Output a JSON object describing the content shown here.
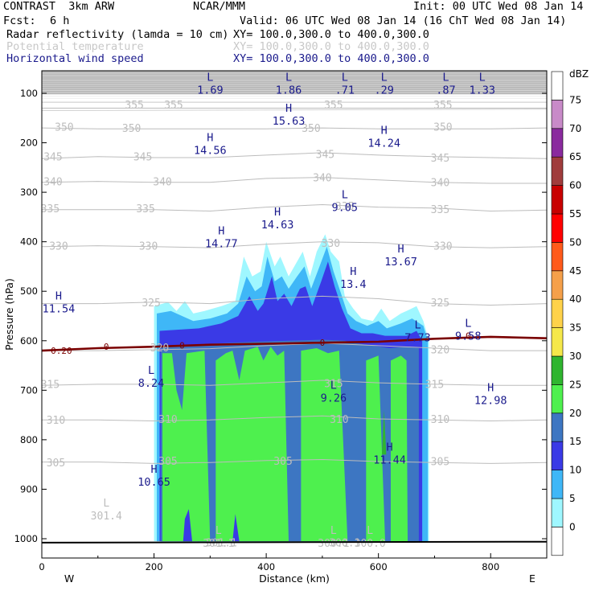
{
  "header": {
    "model": "CONTRAST  3km ARW",
    "org": "NCAR/MMM",
    "init": "Init: 00 UTC Wed 08 Jan 14",
    "fcst_label": "Fcst:",
    "fcst_value": "6 h",
    "valid": "Valid: 06 UTC Wed 08 Jan 14 (16 ChT Wed 08 Jan 14)"
  },
  "fields": [
    {
      "name": "Radar reflectivity (lamda = 10 cm)",
      "xy": "XY= 100.0,300.0 to 400.0,300.0",
      "color": "#000000"
    },
    {
      "name": "Potential temperature",
      "xy": "XY= 100.0,300.0 to 400.0,300.0",
      "color": "#c8c8c8"
    },
    {
      "name": "Horizontal wind speed",
      "xy": "XY= 100.0,300.0 to 400.0,300.0",
      "color": "#1a1a8c"
    }
  ],
  "chart_data": {
    "type": "heatmap",
    "title": "",
    "xlabel": "Distance (km)",
    "ylabel": "Pressure (hPa)",
    "xlim": [
      0,
      900
    ],
    "ylim": [
      1050,
      50
    ],
    "x_ticks": [
      0,
      200,
      400,
      600,
      800
    ],
    "y_ticks": [
      100,
      200,
      300,
      400,
      500,
      600,
      700,
      800,
      900,
      1000
    ],
    "direction_labels": {
      "left": "W",
      "right": "E"
    },
    "colorbar": {
      "unit": "dBZ",
      "levels": [
        0,
        5,
        10,
        15,
        20,
        25,
        30,
        35,
        40,
        45,
        50,
        55,
        60,
        65,
        70,
        75
      ],
      "colors": [
        "#ffffff",
        "#9ff7ff",
        "#3fb7f7",
        "#3a3ae6",
        "#3d76c2",
        "#4ef04e",
        "#2fb52f",
        "#f5e84a",
        "#ffd24a",
        "#f5a04a",
        "#ff5a1a",
        "#ff0000",
        "#c80000",
        "#a03c3c",
        "#8a2a9e",
        "#c88ac8"
      ]
    },
    "theta_contours": [
      {
        "value": 355,
        "p": [
          130,
          130,
          130,
          130,
          130,
          130,
          130,
          130,
          130,
          130
        ]
      },
      {
        "value": 350,
        "p": [
          170,
          172,
          172,
          172,
          172,
          170,
          172,
          172,
          172,
          170
        ]
      },
      {
        "value": 345,
        "p": [
          232,
          228,
          230,
          230,
          225,
          220,
          225,
          228,
          230,
          232
        ]
      },
      {
        "value": 340,
        "p": [
          280,
          278,
          280,
          280,
          272,
          270,
          275,
          280,
          282,
          282
        ]
      },
      {
        "value": 335,
        "p": [
          335,
          335,
          335,
          338,
          330,
          325,
          330,
          332,
          338,
          336
        ]
      },
      {
        "value": 330,
        "p": [
          410,
          408,
          410,
          412,
          405,
          400,
          402,
          410,
          412,
          410
        ]
      },
      {
        "value": 325,
        "p": [
          525,
          525,
          522,
          525,
          515,
          510,
          515,
          525,
          528,
          525
        ]
      },
      {
        "value": 320,
        "p": [
          620,
          620,
          618,
          616,
          610,
          605,
          610,
          615,
          620,
          620
        ]
      },
      {
        "value": 315,
        "p": [
          690,
          688,
          688,
          690,
          685,
          680,
          685,
          688,
          690,
          690
        ]
      },
      {
        "value": 310,
        "p": [
          760,
          760,
          762,
          760,
          755,
          752,
          758,
          760,
          762,
          760
        ]
      },
      {
        "value": 305,
        "p": [
          845,
          845,
          848,
          846,
          842,
          840,
          844,
          846,
          848,
          846
        ]
      }
    ],
    "theta_labels": [
      {
        "text": "355",
        "x": 165,
        "p": 125
      },
      {
        "text": "355",
        "x": 235,
        "p": 125
      },
      {
        "text": "355",
        "x": 520,
        "p": 125
      },
      {
        "text": "355",
        "x": 715,
        "p": 125
      },
      {
        "text": "350",
        "x": 40,
        "p": 170
      },
      {
        "text": "350",
        "x": 160,
        "p": 172
      },
      {
        "text": "350",
        "x": 480,
        "p": 172
      },
      {
        "text": "350",
        "x": 715,
        "p": 170
      },
      {
        "text": "345",
        "x": 20,
        "p": 230
      },
      {
        "text": "345",
        "x": 180,
        "p": 230
      },
      {
        "text": "345",
        "x": 505,
        "p": 225
      },
      {
        "text": "345",
        "x": 710,
        "p": 232
      },
      {
        "text": "340",
        "x": 20,
        "p": 280
      },
      {
        "text": "340",
        "x": 215,
        "p": 280
      },
      {
        "text": "340",
        "x": 500,
        "p": 272
      },
      {
        "text": "340",
        "x": 710,
        "p": 282
      },
      {
        "text": "335",
        "x": 15,
        "p": 335
      },
      {
        "text": "335",
        "x": 185,
        "p": 335
      },
      {
        "text": "335",
        "x": 540,
        "p": 330
      },
      {
        "text": "335",
        "x": 710,
        "p": 336
      },
      {
        "text": "330",
        "x": 30,
        "p": 410
      },
      {
        "text": "330",
        "x": 190,
        "p": 410
      },
      {
        "text": "330",
        "x": 515,
        "p": 405
      },
      {
        "text": "330",
        "x": 715,
        "p": 410
      },
      {
        "text": "325",
        "x": 195,
        "p": 525
      },
      {
        "text": "325",
        "x": 710,
        "p": 525
      },
      {
        "text": "320",
        "x": 210,
        "p": 616
      },
      {
        "text": "320",
        "x": 710,
        "p": 620
      },
      {
        "text": "315",
        "x": 15,
        "p": 690
      },
      {
        "text": "315",
        "x": 520,
        "p": 688
      },
      {
        "text": "315",
        "x": 700,
        "p": 690
      },
      {
        "text": "310",
        "x": 25,
        "p": 762
      },
      {
        "text": "310",
        "x": 225,
        "p": 760
      },
      {
        "text": "310",
        "x": 530,
        "p": 760
      },
      {
        "text": "310",
        "x": 710,
        "p": 760
      },
      {
        "text": "305",
        "x": 25,
        "p": 848
      },
      {
        "text": "305",
        "x": 225,
        "p": 845
      },
      {
        "text": "305",
        "x": 430,
        "p": 845
      },
      {
        "text": "305",
        "x": 710,
        "p": 846
      },
      {
        "text": "301.1",
        "x": 320,
        "p": 1010
      },
      {
        "text": "300.1",
        "x": 540,
        "p": 1010
      }
    ],
    "theta_extrema": [
      {
        "type": "L",
        "value": "301.4",
        "x": 115,
        "p": 945
      },
      {
        "type": "L",
        "value": "301.1",
        "x": 315,
        "p": 1000
      },
      {
        "type": "L",
        "value": "300.1",
        "x": 520,
        "p": 1000
      },
      {
        "type": "L",
        "value": "300.0",
        "x": 585,
        "p": 1000
      }
    ],
    "wind_zero_contour": {
      "label": "0",
      "p": [
        620,
        615,
        612,
        608,
        606,
        604,
        602,
        596,
        592,
        595
      ]
    },
    "wind_zero_labels": [
      {
        "text": "0.20",
        "x": 35,
        "p": 620
      },
      {
        "text": "0",
        "x": 115,
        "p": 612
      },
      {
        "text": "0",
        "x": 250,
        "p": 609
      },
      {
        "text": "0",
        "x": 500,
        "p": 604
      },
      {
        "text": "0",
        "x": 760,
        "p": 590
      }
    ],
    "wind_extrema": [
      {
        "type": "L",
        "value": "1.69",
        "x": 300,
        "p": 88
      },
      {
        "type": "L",
        "value": "1.86",
        "x": 440,
        "p": 88
      },
      {
        "type": "L",
        "value": ".71",
        "x": 540,
        "p": 88
      },
      {
        "type": "L",
        "value": ".29",
        "x": 610,
        "p": 88
      },
      {
        "type": "L",
        "value": ".87",
        "x": 720,
        "p": 88
      },
      {
        "type": "L",
        "value": "1.33",
        "x": 785,
        "p": 88
      },
      {
        "type": "H",
        "value": "15.63",
        "x": 440,
        "p": 150
      },
      {
        "type": "H",
        "value": "14.24",
        "x": 610,
        "p": 195
      },
      {
        "type": "H",
        "value": "14.56",
        "x": 300,
        "p": 210
      },
      {
        "type": "L",
        "value": "9.05",
        "x": 540,
        "p": 325
      },
      {
        "type": "H",
        "value": "14.63",
        "x": 420,
        "p": 360
      },
      {
        "type": "H",
        "value": "14.77",
        "x": 320,
        "p": 398
      },
      {
        "type": "H",
        "value": "13.67",
        "x": 640,
        "p": 435
      },
      {
        "type": "H",
        "value": "13.4",
        "x": 555,
        "p": 480
      },
      {
        "type": "H",
        "value": "11.54",
        "x": 30,
        "p": 530
      },
      {
        "type": "L",
        "value": "7.73",
        "x": 670,
        "p": 588
      },
      {
        "type": "L",
        "value": "9.58",
        "x": 760,
        "p": 585
      },
      {
        "type": "L",
        "value": "8.24",
        "x": 195,
        "p": 680
      },
      {
        "type": "L",
        "value": "9.26",
        "x": 520,
        "p": 710
      },
      {
        "type": "H",
        "value": "12.98",
        "x": 800,
        "p": 715
      },
      {
        "type": "H",
        "value": "11.44",
        "x": 620,
        "p": 835
      },
      {
        "type": "H",
        "value": "10.65",
        "x": 200,
        "p": 880
      }
    ]
  }
}
